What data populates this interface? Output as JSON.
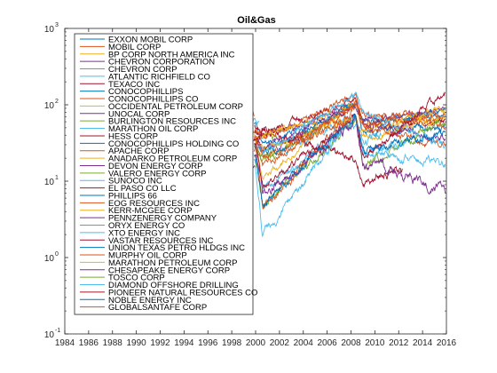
{
  "chart_data": {
    "type": "line",
    "title": "Oil&Gas",
    "xlabel": "",
    "ylabel": "",
    "y_scale": "log",
    "xlim": [
      1984,
      2016
    ],
    "ylim": [
      0.1,
      1000
    ],
    "x_ticks": [
      "1984",
      "1986",
      "1988",
      "1990",
      "1992",
      "1994",
      "1996",
      "1998",
      "2000",
      "2002",
      "2004",
      "2006",
      "2008",
      "2010",
      "2012",
      "2014",
      "2016"
    ],
    "y_ticks": [
      {
        "value": 0.1,
        "label": "10",
        "exp": "-1"
      },
      {
        "value": 1,
        "label": "10",
        "exp": "0"
      },
      {
        "value": 10,
        "label": "10",
        "exp": "1"
      },
      {
        "value": 100,
        "label": "10",
        "exp": "2"
      },
      {
        "value": 1000,
        "label": "10",
        "exp": "3"
      }
    ],
    "grid": false,
    "legend_location": "left",
    "series": [
      {
        "name": "EXXON MOBIL CORP",
        "color": "#0072bd",
        "start": 1999.9,
        "end": 2015.9,
        "level": 55,
        "v2000": 30,
        "v2008": 95,
        "v2009": 60,
        "vend": 75,
        "jitter": 0.1
      },
      {
        "name": "MOBIL CORP",
        "color": "#d95319",
        "start": 1998.6,
        "end": 1999.9,
        "level": 70,
        "v2000": 75,
        "v2008": 75,
        "v2009": 75,
        "vend": 75,
        "jitter": 0.12
      },
      {
        "name": "BP CORP NORTH AMERICA INC",
        "color": "#edb120",
        "start": 1999.5,
        "end": 2000.8,
        "level": 45,
        "v2000": 40,
        "v2008": 40,
        "v2009": 40,
        "vend": 40,
        "jitter": 0.15
      },
      {
        "name": "CHEVRON CORPORATION",
        "color": "#7e2f8e",
        "start": 2001.8,
        "end": 2015.9,
        "level": 55,
        "v2000": 35,
        "v2008": 100,
        "v2009": 65,
        "vend": 85,
        "jitter": 0.1
      },
      {
        "name": "CHEVRON CORP",
        "color": "#77ac30",
        "start": 1999.9,
        "end": 2001.8,
        "level": 40,
        "v2000": 38,
        "v2008": 40,
        "v2009": 40,
        "vend": 40,
        "jitter": 0.1
      },
      {
        "name": "ATLANTIC RICHFIELD CO",
        "color": "#4dbeee",
        "start": 1999.5,
        "end": 2000.3,
        "level": 60,
        "v2000": 55,
        "v2008": 55,
        "v2009": 55,
        "vend": 55,
        "jitter": 0.12
      },
      {
        "name": "TEXACO INC",
        "color": "#a2142f",
        "start": 1999.9,
        "end": 2001.8,
        "level": 50,
        "v2000": 45,
        "v2008": 45,
        "v2009": 45,
        "vend": 45,
        "jitter": 0.12
      },
      {
        "name": "CONOCOPHILLIPS",
        "color": "#0072bd",
        "start": 2002.7,
        "end": 2015.9,
        "level": 40,
        "v2000": 20,
        "v2008": 110,
        "v2009": 45,
        "vend": 50,
        "jitter": 0.12
      },
      {
        "name": "CONOCOPHILLIPS CO",
        "color": "#d95319",
        "start": 2002.7,
        "end": 2008.0,
        "level": 40,
        "v2000": 20,
        "v2008": 100,
        "v2009": 90,
        "vend": 90,
        "jitter": 0.12
      },
      {
        "name": "OCCIDENTAL PETROLEUM CORP",
        "color": "#edb120",
        "start": 1999.9,
        "end": 2015.9,
        "level": 35,
        "v2000": 10,
        "v2008": 120,
        "v2009": 50,
        "vend": 70,
        "jitter": 0.12
      },
      {
        "name": "UNOCAL CORP",
        "color": "#7e2f8e",
        "start": 1999.9,
        "end": 2005.6,
        "level": 35,
        "v2000": 25,
        "v2008": 65,
        "v2009": 65,
        "vend": 65,
        "jitter": 0.12
      },
      {
        "name": "BURLINGTON RESOURCES INC",
        "color": "#77ac30",
        "start": 1999.9,
        "end": 2006.2,
        "level": 30,
        "v2000": 20,
        "v2008": 90,
        "v2009": 90,
        "vend": 90,
        "jitter": 0.12
      },
      {
        "name": "MARATHON OIL CORP",
        "color": "#4dbeee",
        "start": 2001.9,
        "end": 2015.9,
        "level": 30,
        "v2000": 18,
        "v2008": 80,
        "v2009": 25,
        "vend": 16,
        "jitter": 0.14
      },
      {
        "name": "HESS CORP",
        "color": "#a2142f",
        "start": 1999.9,
        "end": 2015.9,
        "level": 45,
        "v2000": 40,
        "v2008": 120,
        "v2009": 50,
        "vend": 60,
        "jitter": 0.12
      },
      {
        "name": "CONOCOPHILLIPS HOLDING CO",
        "color": "#0072bd",
        "start": 1999.9,
        "end": 2002.7,
        "level": 30,
        "v2000": 25,
        "v2008": 30,
        "v2009": 30,
        "vend": 30,
        "jitter": 0.12
      },
      {
        "name": "APACHE CORP",
        "color": "#d95319",
        "start": 1999.9,
        "end": 2015.9,
        "level": 45,
        "v2000": 35,
        "v2008": 130,
        "v2009": 75,
        "vend": 55,
        "jitter": 0.12
      },
      {
        "name": "ANADARKO PETROLEUM CORP",
        "color": "#edb120",
        "start": 1999.9,
        "end": 2015.9,
        "level": 35,
        "v2000": 25,
        "v2008": 70,
        "v2009": 35,
        "vend": 70,
        "jitter": 0.14
      },
      {
        "name": "DEVON ENERGY CORP",
        "color": "#7e2f8e",
        "start": 1999.9,
        "end": 2015.9,
        "level": 35,
        "v2000": 25,
        "v2008": 100,
        "v2009": 55,
        "vend": 35,
        "jitter": 0.12
      },
      {
        "name": "VALERO ENERGY CORP",
        "color": "#77ac30",
        "start": 1999.9,
        "end": 2015.9,
        "level": 20,
        "v2000": 5,
        "v2008": 60,
        "v2009": 15,
        "vend": 60,
        "jitter": 0.16
      },
      {
        "name": "SUNOCO INC",
        "color": "#4dbeee",
        "start": 1999.9,
        "end": 2012.7,
        "level": 20,
        "v2000": 8,
        "v2008": 60,
        "v2009": 25,
        "vend": 45,
        "jitter": 0.16
      },
      {
        "name": "EL PASO CO LLC",
        "color": "#a2142f",
        "start": 1999.9,
        "end": 2012.3,
        "level": 25,
        "v2000": 50,
        "v2008": 20,
        "v2009": 10,
        "vend": 22,
        "jitter": 0.16
      },
      {
        "name": "PHILLIPS 66",
        "color": "#0072bd",
        "start": 2012.3,
        "end": 2015.9,
        "level": 65,
        "v2000": 50,
        "v2008": 50,
        "v2009": 50,
        "vend": 85,
        "jitter": 0.1
      },
      {
        "name": "EOG RESOURCES INC",
        "color": "#d95319",
        "start": 1999.9,
        "end": 2015.9,
        "level": 30,
        "v2000": 4,
        "v2008": 100,
        "v2009": 60,
        "vend": 80,
        "jitter": 0.14
      },
      {
        "name": "KERR-MCGEE CORP",
        "color": "#edb120",
        "start": 1999.9,
        "end": 2006.4,
        "level": 40,
        "v2000": 40,
        "v2008": 90,
        "v2009": 90,
        "vend": 90,
        "jitter": 0.12
      },
      {
        "name": "PENNZENERGY COMPANY",
        "color": "#7e2f8e",
        "start": 1999.5,
        "end": 1999.9,
        "level": 15,
        "v2000": 15,
        "v2008": 15,
        "v2009": 15,
        "vend": 15,
        "jitter": 0.12
      },
      {
        "name": "ORYX ENERGY CO",
        "color": "#77ac30",
        "start": 1999.5,
        "end": 1999.8,
        "level": 20,
        "v2000": 20,
        "v2008": 20,
        "v2009": 20,
        "vend": 20,
        "jitter": 0.12
      },
      {
        "name": "XTO ENERGY INC",
        "color": "#4dbeee",
        "start": 1999.9,
        "end": 2010.5,
        "level": 15,
        "v2000": 2,
        "v2008": 70,
        "v2009": 38,
        "vend": 40,
        "jitter": 0.16
      },
      {
        "name": "VASTAR RESOURCES INC",
        "color": "#a2142f",
        "start": 1999.5,
        "end": 2000.6,
        "level": 35,
        "v2000": 35,
        "v2008": 35,
        "v2009": 35,
        "vend": 35,
        "jitter": 0.12
      },
      {
        "name": "UNION TEXAS PETRO HLDGS INC",
        "color": "#0072bd",
        "start": 1998.2,
        "end": 1998.6,
        "level": 20,
        "v2000": 20,
        "v2008": 20,
        "v2009": 20,
        "vend": 20,
        "jitter": 0.12
      },
      {
        "name": "MURPHY OIL CORP",
        "color": "#d95319",
        "start": 1999.9,
        "end": 2015.9,
        "level": 30,
        "v2000": 15,
        "v2008": 100,
        "v2009": 50,
        "vend": 30,
        "jitter": 0.12
      },
      {
        "name": "MARATHON PETROLEUM CORP",
        "color": "#edb120",
        "start": 2011.5,
        "end": 2015.9,
        "level": 40,
        "v2000": 40,
        "v2008": 40,
        "v2009": 40,
        "vend": 90,
        "jitter": 0.12
      },
      {
        "name": "CHESAPEAKE ENERGY CORP",
        "color": "#7e2f8e",
        "start": 1999.9,
        "end": 2015.9,
        "level": 20,
        "v2000": 6,
        "v2008": 65,
        "v2009": 18,
        "vend": 8,
        "jitter": 0.18
      },
      {
        "name": "TOSCO CORP",
        "color": "#77ac30",
        "start": 1999.9,
        "end": 2001.7,
        "level": 25,
        "v2000": 20,
        "v2008": 20,
        "v2009": 20,
        "vend": 20,
        "jitter": 0.12
      },
      {
        "name": "DIAMOND OFFSHORE DRILLING",
        "color": "#4dbeee",
        "start": 1999.9,
        "end": 2015.9,
        "level": 30,
        "v2000": 25,
        "v2008": 130,
        "v2009": 80,
        "vend": 30,
        "jitter": 0.12
      },
      {
        "name": "PIONEER NATURAL RESOURCES CO",
        "color": "#a2142f",
        "start": 1999.9,
        "end": 2015.9,
        "level": 30,
        "v2000": 8,
        "v2008": 70,
        "v2009": 20,
        "vend": 150,
        "jitter": 0.12
      },
      {
        "name": "NOBLE ENERGY INC",
        "color": "#0072bd",
        "start": 1999.9,
        "end": 2015.9,
        "level": 20,
        "v2000": 5,
        "v2008": 70,
        "v2009": 25,
        "vend": 45,
        "jitter": 0.14
      },
      {
        "name": "GLOBALSANTAFE CORP",
        "color": "#d95319",
        "start": 1999.9,
        "end": 2007.9,
        "level": 35,
        "v2000": 20,
        "v2008": 70,
        "v2009": 70,
        "vend": 70,
        "jitter": 0.12
      }
    ]
  }
}
